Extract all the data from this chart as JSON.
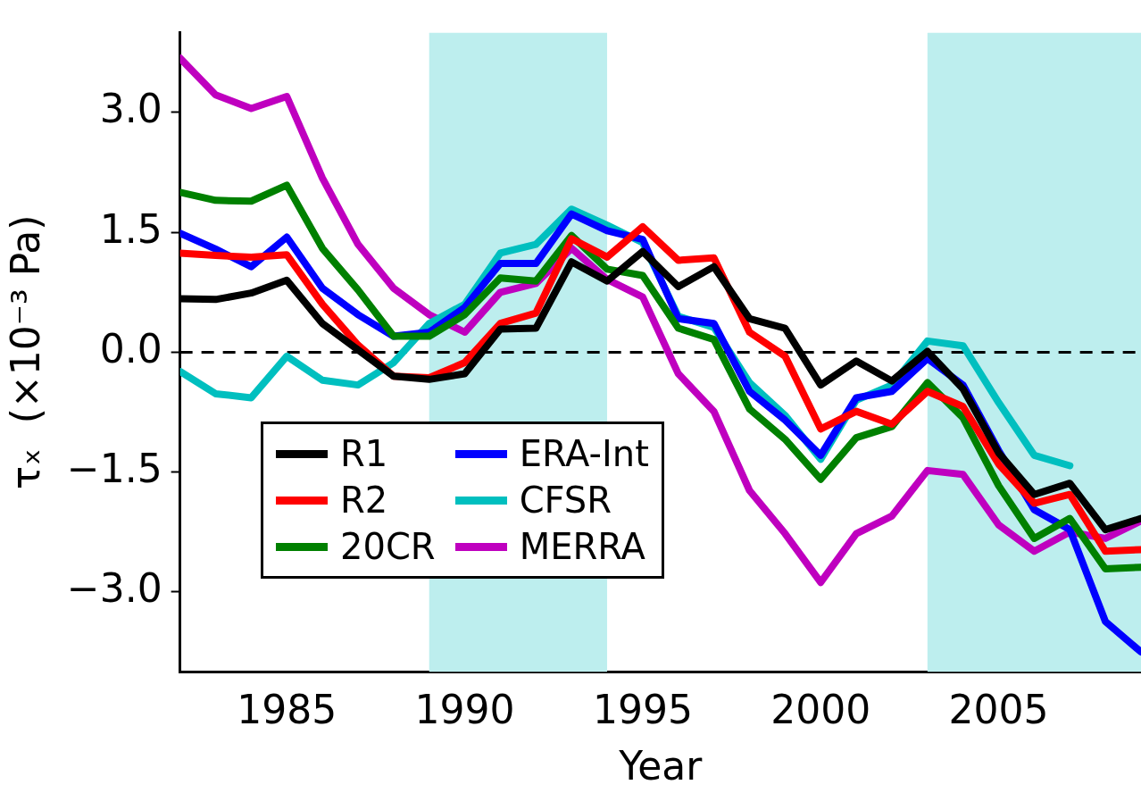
{
  "chart_data": {
    "type": "line",
    "xlabel": "Year",
    "ylabel": "τₓ  (×10⁻³ Pa)",
    "x": [
      1982,
      1983,
      1984,
      1985,
      1986,
      1987,
      1988,
      1989,
      1990,
      1991,
      1992,
      1993,
      1994,
      1995,
      1996,
      1997,
      1998,
      1999,
      2000,
      2001,
      2002,
      2003,
      2004,
      2005,
      2006,
      2007,
      2008,
      2009
    ],
    "series": [
      {
        "name": "R1",
        "color": "#000000",
        "values": [
          0.67,
          0.66,
          0.74,
          0.9,
          0.36,
          0.03,
          -0.3,
          -0.34,
          -0.27,
          0.29,
          0.3,
          1.13,
          0.89,
          1.26,
          0.82,
          1.07,
          0.42,
          0.3,
          -0.41,
          -0.11,
          -0.36,
          0.01,
          -0.46,
          -1.26,
          -1.78,
          -1.64,
          -2.22,
          -2.08
        ]
      },
      {
        "name": "R2",
        "color": "#ff0000",
        "values": [
          1.24,
          1.21,
          1.19,
          1.22,
          0.6,
          0.09,
          -0.3,
          -0.32,
          -0.13,
          0.36,
          0.49,
          1.42,
          1.19,
          1.57,
          1.15,
          1.18,
          0.25,
          -0.05,
          -0.96,
          -0.74,
          -0.9,
          -0.49,
          -0.68,
          -1.4,
          -1.89,
          -1.78,
          -2.49,
          -2.47
        ]
      },
      {
        "name": "20CR",
        "color": "#008000",
        "values": [
          2.0,
          1.9,
          1.89,
          2.09,
          1.3,
          0.78,
          0.2,
          0.2,
          0.47,
          0.93,
          0.89,
          1.46,
          1.04,
          0.96,
          0.3,
          0.16,
          -0.71,
          -1.09,
          -1.59,
          -1.07,
          -0.93,
          -0.38,
          -0.82,
          -1.67,
          -2.33,
          -2.08,
          -2.71,
          -2.69
        ]
      },
      {
        "name": "ERA-Int",
        "color": "#0000ff",
        "values": [
          1.49,
          1.29,
          1.07,
          1.44,
          0.8,
          0.47,
          0.2,
          0.25,
          0.56,
          1.11,
          1.11,
          1.73,
          1.52,
          1.41,
          0.42,
          0.36,
          -0.49,
          -0.85,
          -1.29,
          -0.57,
          -0.49,
          -0.08,
          -0.41,
          -1.23,
          -1.97,
          -2.22,
          -3.37,
          -3.75
        ]
      },
      {
        "name": "CFSR",
        "color": "#00bfbf",
        "values": [
          -0.24,
          -0.52,
          -0.57,
          -0.05,
          -0.35,
          -0.41,
          -0.13,
          0.36,
          0.6,
          1.24,
          1.35,
          1.79,
          1.59,
          1.37,
          0.45,
          0.31,
          -0.38,
          -0.79,
          -1.34,
          -0.6,
          -0.41,
          0.14,
          0.08,
          -0.63,
          -1.29,
          -1.42,
          null,
          null
        ]
      },
      {
        "name": "MERRA",
        "color": "#bf00bf",
        "values": [
          3.68,
          3.22,
          3.05,
          3.2,
          2.18,
          1.35,
          0.8,
          0.47,
          0.25,
          0.75,
          0.86,
          1.3,
          0.91,
          0.69,
          -0.27,
          -0.74,
          -1.73,
          -2.27,
          -2.88,
          -2.27,
          -2.05,
          -1.48,
          -1.53,
          -2.16,
          -2.49,
          -2.25,
          -2.33,
          -2.11
        ]
      }
    ],
    "xlim": [
      1982,
      2009
    ],
    "xticks": [
      1985,
      1990,
      1995,
      2000,
      2005
    ],
    "ylim": [
      -4,
      4
    ],
    "yticks": [
      {
        "value": -3,
        "label": "−3.0"
      },
      {
        "value": -1.5,
        "label": "−1.5"
      },
      {
        "value": 0,
        "label": "0.0"
      },
      {
        "value": 1.5,
        "label": "1.5"
      },
      {
        "value": 3,
        "label": "3.0"
      }
    ],
    "ref_lines": [
      {
        "axis": "y",
        "value": 0,
        "color": "#000000",
        "line_style": "dashed"
      }
    ],
    "bands": [
      {
        "axis": "x",
        "from": 1989,
        "to": 1994,
        "color": "#bdeeee"
      },
      {
        "axis": "x",
        "from": 2003,
        "to": 2009,
        "color": "#bdeeee"
      }
    ],
    "legend": "bottom left",
    "marker": "none",
    "line_style": "solid",
    "grid": false
  }
}
